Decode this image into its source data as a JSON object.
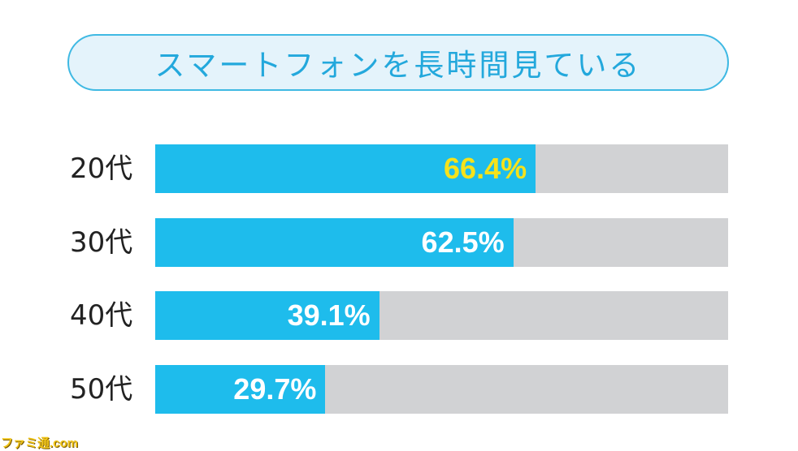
{
  "title": "スマートフォンを長時間見ている",
  "chart_data": {
    "type": "bar",
    "orientation": "horizontal",
    "categories": [
      "20代",
      "30代",
      "40代",
      "50代"
    ],
    "values": [
      66.4,
      62.5,
      39.1,
      29.7
    ],
    "value_labels": [
      "66.4%",
      "62.5%",
      "39.1%",
      "29.7%"
    ],
    "xlim": [
      0,
      100
    ],
    "title": "スマートフォンを長時間見ている",
    "highlight_index": 0,
    "colors": {
      "bar": "#1ebcec",
      "track": "#d1d2d4",
      "label": "#ffffff",
      "highlight_label": "#f5e21b",
      "title": "#23a8dc",
      "title_border": "#3fb9e3",
      "title_bg": "#e4f3fb"
    }
  },
  "watermark": "ファミ通.com"
}
